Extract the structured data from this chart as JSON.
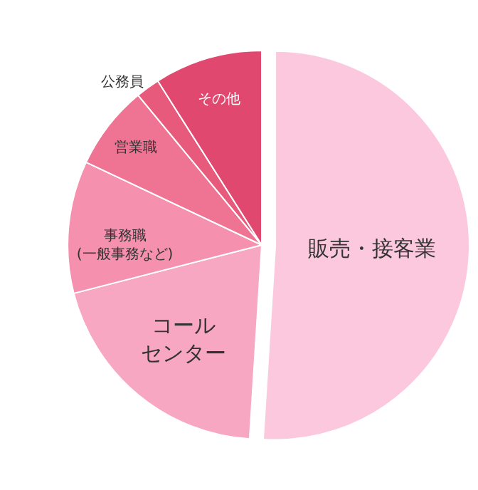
{
  "chart_data": {
    "type": "pie",
    "categories": [
      "販売・接客業",
      "コールセンター",
      "事務職\n(一般事務など)",
      "営業職",
      "公務員",
      "その他"
    ],
    "values": [
      51,
      20,
      11,
      7,
      2,
      9
    ],
    "colors": [
      "#fbc8de",
      "#f8a7c3",
      "#f590ae",
      "#ef7393",
      "#e85a7c",
      "#e04870"
    ],
    "legend": false
  }
}
